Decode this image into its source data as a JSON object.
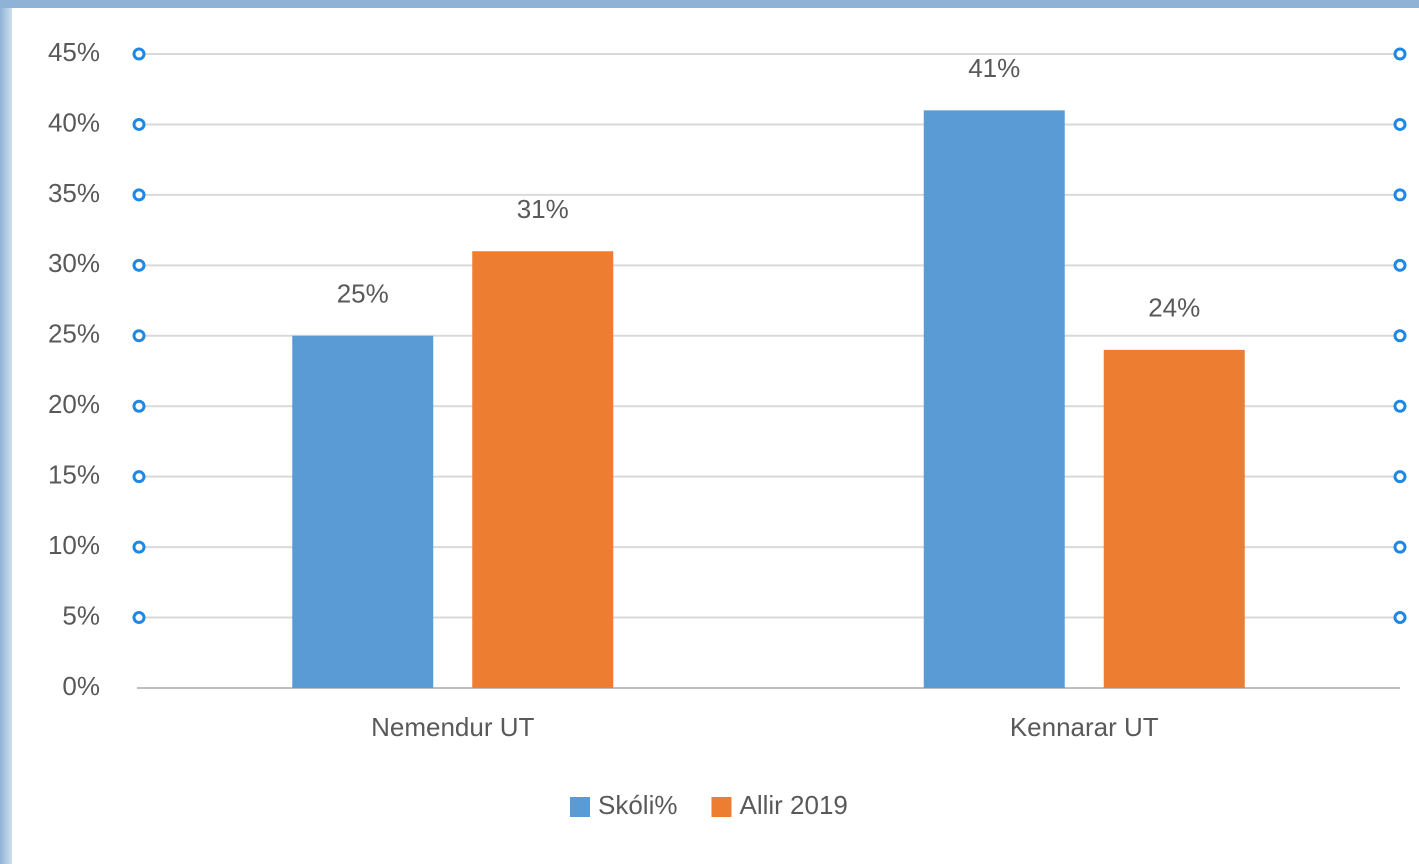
{
  "chart_data": {
    "type": "bar",
    "categories": [
      "Nemendur UT",
      "Kennarar UT"
    ],
    "series": [
      {
        "name": "Skóli%",
        "color": "#5b9bd5",
        "values": [
          25,
          41
        ],
        "value_labels": [
          "25%",
          "41%"
        ]
      },
      {
        "name": "Allir 2019",
        "color": "#ed7d31",
        "values": [
          31,
          24
        ],
        "value_labels": [
          "31%",
          "24%"
        ]
      }
    ],
    "ylim": [
      0,
      45
    ],
    "yticks": [
      {
        "value": 0,
        "label": "0%"
      },
      {
        "value": 5,
        "label": "5%"
      },
      {
        "value": 10,
        "label": "10%"
      },
      {
        "value": 15,
        "label": "15%"
      },
      {
        "value": 20,
        "label": "20%"
      },
      {
        "value": 25,
        "label": "25%"
      },
      {
        "value": 30,
        "label": "30%"
      },
      {
        "value": 35,
        "label": "35%"
      },
      {
        "value": 40,
        "label": "40%"
      },
      {
        "value": 45,
        "label": "45%"
      }
    ],
    "grid": true,
    "legend": "bottom"
  }
}
